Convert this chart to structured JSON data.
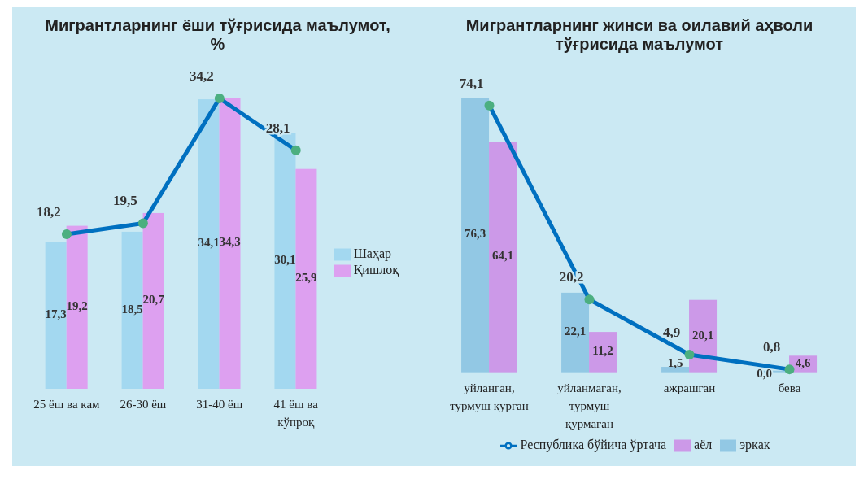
{
  "chart_data": [
    {
      "type": "bar",
      "title": "Мигрантларнинг ёши тўғрисида маълумот, %",
      "categories": [
        "25 ёш ва кам",
        "26-30 ёш",
        "31-40 ёш",
        "41 ёш ва кўпроқ"
      ],
      "series": [
        {
          "name": "Шаҳар",
          "color": "#a3d8f0",
          "values": [
            17.3,
            18.5,
            34.1,
            30.1
          ],
          "value_labels": [
            "17,3",
            "18,5",
            "34,1",
            "30,1"
          ]
        },
        {
          "name": "Қишлоқ",
          "color": "#dda0f0",
          "values": [
            19.2,
            20.7,
            34.3,
            25.9
          ],
          "value_labels": [
            "19,2",
            "20,7",
            "34,3",
            "25,9"
          ]
        },
        {
          "type": "line",
          "color": "#0070c0",
          "values": [
            18.2,
            19.5,
            34.2,
            28.1
          ],
          "value_labels": [
            "18,2",
            "19,5",
            "34,2",
            "28,1"
          ]
        }
      ],
      "legend": "right",
      "marker": "circle",
      "grid": false
    },
    {
      "type": "bar",
      "title": "Мигрантларнинг жинси ва оилавий аҳволи тўғрисида маълумот",
      "categories": [
        "уйланган, турмуш қурган",
        "уйланмаган, турмуш қурмаган",
        "ажрашган",
        "бева"
      ],
      "series": [
        {
          "name": "эркак",
          "color": "#92c8e4",
          "values": [
            76.3,
            22.1,
            1.5,
            0.0
          ],
          "value_labels": [
            "76,3",
            "22,1",
            "1,5",
            "0,0"
          ]
        },
        {
          "name": "аёл",
          "color": "#cc99e8",
          "values": [
            64.1,
            11.2,
            20.1,
            4.6
          ],
          "value_labels": [
            "64,1",
            "11,2",
            "20,1",
            "4,6"
          ]
        },
        {
          "name": "Республика бўйича ўртача",
          "type": "line",
          "color": "#0070c0",
          "values": [
            74.1,
            20.2,
            4.9,
            0.8
          ],
          "value_labels": [
            "74,1",
            "20,2",
            "4,9",
            "0,8"
          ]
        }
      ],
      "legend": "bottom",
      "marker": "circle",
      "grid": false
    }
  ]
}
